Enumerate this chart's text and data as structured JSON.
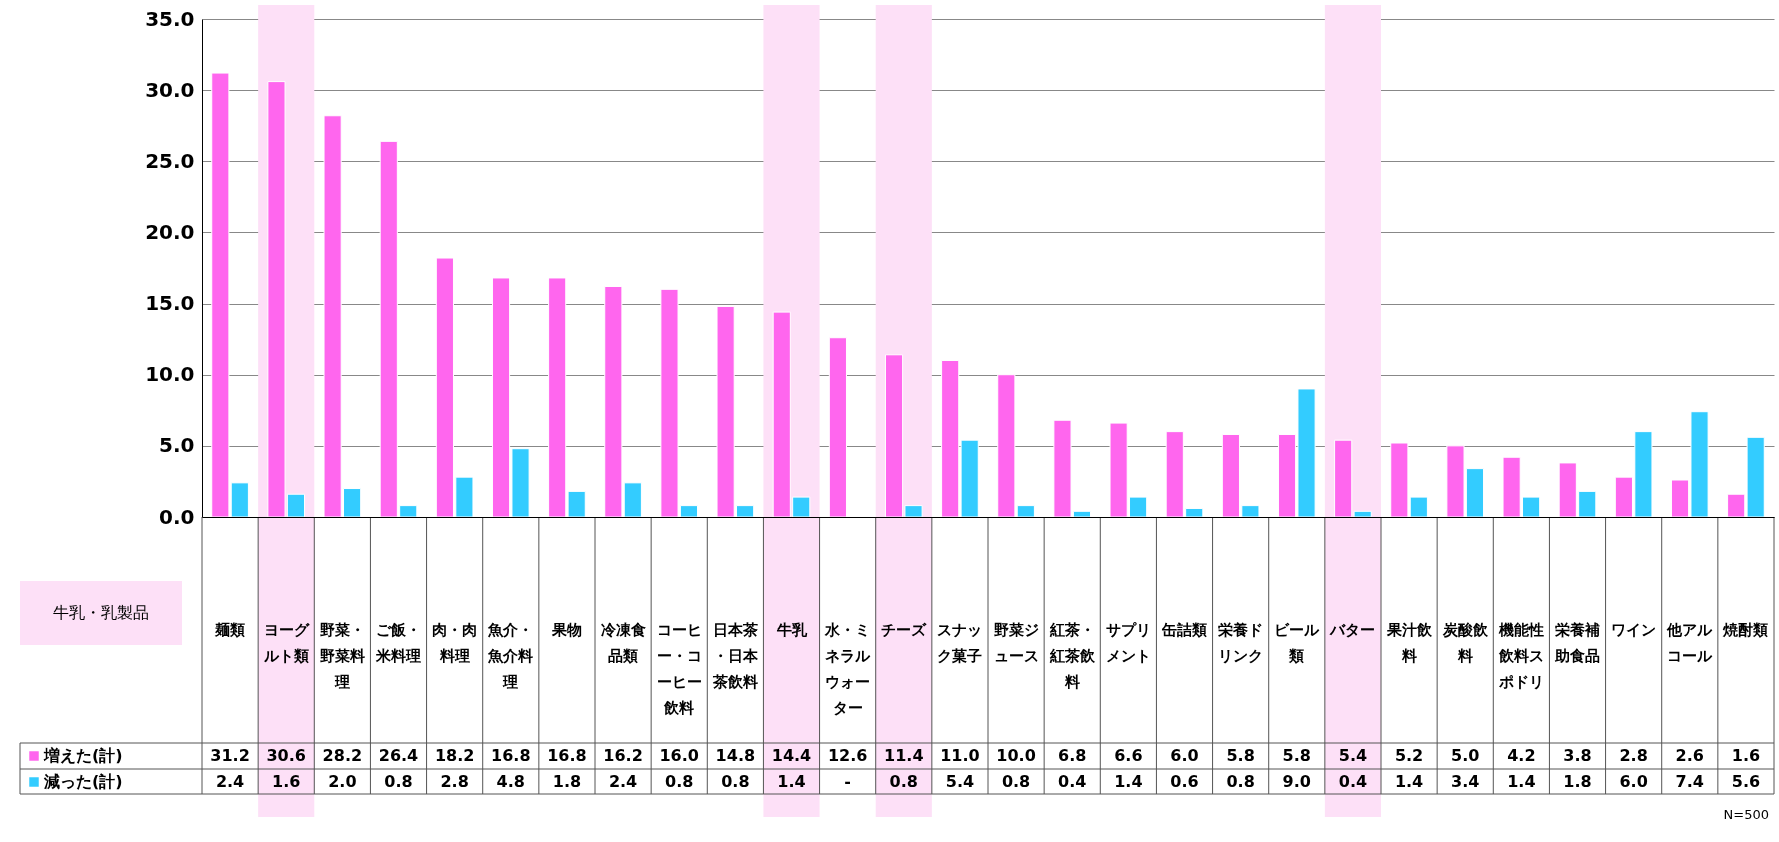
{
  "chart_data": {
    "type": "bar",
    "categories": [
      "麺類",
      "ヨーグルト類",
      "野菜・野菜料理",
      "ご飯・米料理",
      "肉・肉料理",
      "魚介・魚介料理",
      "果物",
      "冷凍食品類",
      "コーヒー・コーヒー飲料",
      "日本茶・日本茶飲料",
      "牛乳",
      "水・ミネラルウォーター",
      "チーズ",
      "スナック菓子",
      "野菜ジュース",
      "紅茶・紅茶飲料",
      "サプリメント",
      "缶詰類",
      "栄養ドリンク",
      "ビール類",
      "バター",
      "果汁飲料",
      "炭酸飲料",
      "機能性飲料スポドリ",
      "栄養補助食品",
      "ワイン",
      "他アルコール",
      "焼酎類"
    ],
    "series": [
      {
        "name": "増えた(計)",
        "color": "#ff66ee",
        "values": [
          31.2,
          30.6,
          28.2,
          26.4,
          18.2,
          16.8,
          16.8,
          16.2,
          16.0,
          14.8,
          14.4,
          12.6,
          11.4,
          11.0,
          10.0,
          6.8,
          6.6,
          6.0,
          5.8,
          5.8,
          5.4,
          5.2,
          5.0,
          4.2,
          3.8,
          2.8,
          2.6,
          1.6
        ],
        "value_labels": [
          "31.2",
          "30.6",
          "28.2",
          "26.4",
          "18.2",
          "16.8",
          "16.8",
          "16.2",
          "16.0",
          "14.8",
          "14.4",
          "12.6",
          "11.4",
          "11.0",
          "10.0",
          "6.8",
          "6.6",
          "6.0",
          "5.8",
          "5.8",
          "5.4",
          "5.2",
          "5.0",
          "4.2",
          "3.8",
          "2.8",
          "2.6",
          "1.6"
        ]
      },
      {
        "name": "減った(計)",
        "color": "#33ccff",
        "values": [
          2.4,
          1.6,
          2.0,
          0.8,
          2.8,
          4.8,
          1.8,
          2.4,
          0.8,
          0.8,
          1.4,
          null,
          0.8,
          5.4,
          0.8,
          0.4,
          1.4,
          0.6,
          0.8,
          9.0,
          0.4,
          1.4,
          3.4,
          1.4,
          1.8,
          6.0,
          7.4,
          5.6
        ],
        "value_labels": [
          "2.4",
          "1.6",
          "2.0",
          "0.8",
          "2.8",
          "4.8",
          "1.8",
          "2.4",
          "0.8",
          "0.8",
          "1.4",
          "-",
          "0.8",
          "5.4",
          "0.8",
          "0.4",
          "1.4",
          "0.6",
          "0.8",
          "9.0",
          "0.4",
          "1.4",
          "3.4",
          "1.4",
          "1.8",
          "6.0",
          "7.4",
          "5.6"
        ]
      }
    ],
    "ylim": [
      0,
      35
    ],
    "yticks": [
      {
        "value": 0,
        "label": "0.0"
      },
      {
        "value": 5,
        "label": "5.0"
      },
      {
        "value": 10,
        "label": "10.0"
      },
      {
        "value": 15,
        "label": "15.0"
      },
      {
        "value": 20,
        "label": "20.0"
      },
      {
        "value": 25,
        "label": "25.0"
      },
      {
        "value": 30,
        "label": "30.0"
      },
      {
        "value": 35,
        "label": "35.0"
      }
    ],
    "grid": "y",
    "legend": "bottom left",
    "bands": [
      {
        "axis": "x",
        "from": "ヨーグルト類",
        "to": "ヨーグルト類",
        "color": "#fde0f7"
      },
      {
        "axis": "x",
        "from": "牛乳",
        "to": "牛乳",
        "color": "#fde0f7"
      },
      {
        "axis": "x",
        "from": "チーズ",
        "to": "チーズ",
        "color": "#fde0f7"
      },
      {
        "axis": "x",
        "from": "バター",
        "to": "バター",
        "color": "#fde0f7"
      }
    ],
    "annotations": [
      "牛乳・乳製品",
      "N=500"
    ]
  }
}
